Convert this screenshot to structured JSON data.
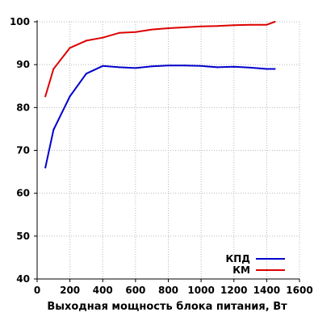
{
  "chart_data": {
    "type": "line",
    "title": "",
    "xlabel": "Выходная мощность блока питания, Вт",
    "ylabel": "",
    "xlim": [
      0,
      1600
    ],
    "ylim": [
      40,
      100
    ],
    "xticks": [
      0,
      200,
      400,
      600,
      800,
      1000,
      1200,
      1400,
      1600
    ],
    "yticks": [
      40,
      50,
      60,
      70,
      80,
      90,
      100
    ],
    "grid": true,
    "legend_position": "bottom-right",
    "series": [
      {
        "name": "КПД",
        "color": "#0000cc",
        "x": [
          50,
          100,
          200,
          300,
          400,
          500,
          600,
          700,
          800,
          900,
          1000,
          1100,
          1200,
          1300,
          1400,
          1450
        ],
        "y": [
          66,
          74.8,
          82.6,
          87.9,
          89.7,
          89.4,
          89.2,
          89.6,
          89.8,
          89.8,
          89.7,
          89.4,
          89.5,
          89.3,
          89.0,
          89.0
        ]
      },
      {
        "name": "КМ",
        "color": "#dd0000",
        "x": [
          50,
          100,
          200,
          300,
          400,
          500,
          600,
          700,
          800,
          900,
          1000,
          1100,
          1200,
          1300,
          1400,
          1450
        ],
        "y": [
          82.6,
          89.0,
          93.9,
          95.6,
          96.3,
          97.4,
          97.6,
          98.2,
          98.5,
          98.7,
          98.9,
          99.0,
          99.2,
          99.3,
          99.3,
          100
        ]
      }
    ]
  }
}
